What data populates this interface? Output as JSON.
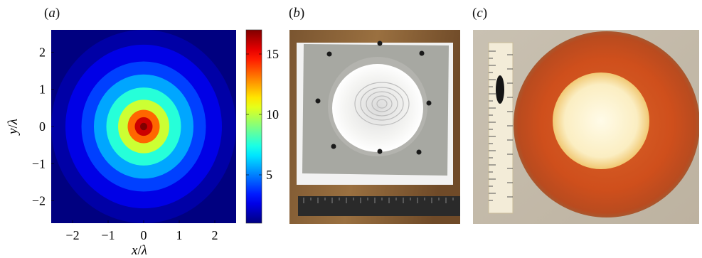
{
  "panels": {
    "a": {
      "label_open": "(",
      "label_letter": "a",
      "label_close": ")"
    },
    "b": {
      "label_open": "(",
      "label_letter": "b",
      "label_close": ")"
    },
    "c": {
      "label_open": "(",
      "label_letter": "c",
      "label_close": ")"
    }
  },
  "chart_data": {
    "type": "heatmap",
    "title": "",
    "xlabel_var": "x",
    "xlabel_unit": "λ",
    "ylabel_var": "y",
    "ylabel_unit": "λ",
    "xlim": [
      -2.6,
      2.6
    ],
    "ylim": [
      -2.6,
      2.6
    ],
    "x_ticks": [
      -2,
      -1,
      0,
      1,
      2
    ],
    "x_tick_labels": [
      "−2",
      "−1",
      "0",
      "1",
      "2"
    ],
    "y_ticks": [
      -2,
      -1,
      0,
      1,
      2
    ],
    "y_tick_labels": [
      "−2",
      "−1",
      "0",
      "1",
      "2"
    ],
    "colorbar": {
      "range": [
        1,
        17
      ],
      "ticks": [
        5,
        10,
        15
      ],
      "tick_labels": [
        "5",
        "10",
        "15"
      ],
      "colormap": "jet"
    },
    "rings": [
      {
        "r_outer": 2.6,
        "value": 1.6
      },
      {
        "r_outer": 2.2,
        "value": 2.6
      },
      {
        "r_outer": 1.75,
        "value": 4.0
      },
      {
        "r_outer": 1.4,
        "value": 5.6
      },
      {
        "r_outer": 1.05,
        "value": 7.6
      },
      {
        "r_outer": 0.72,
        "value": 10.2
      },
      {
        "r_outer": 0.45,
        "value": 13.4
      },
      {
        "r_outer": 0.25,
        "value": 15.8
      },
      {
        "r_outer": 0.1,
        "value": 17.0
      }
    ]
  }
}
